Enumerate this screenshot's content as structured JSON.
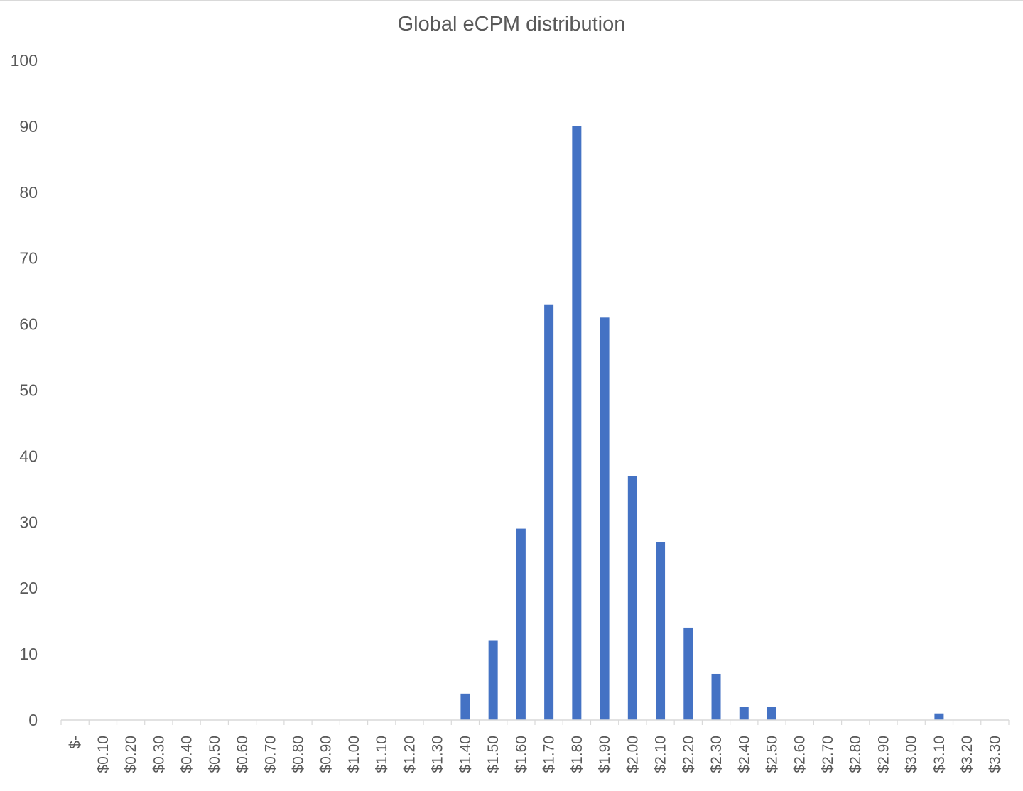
{
  "chart_data": {
    "type": "bar",
    "title": "Global eCPM distribution",
    "xlabel": "",
    "ylabel": "",
    "ylim": [
      0,
      100
    ],
    "yticks": [
      0,
      10,
      20,
      30,
      40,
      50,
      60,
      70,
      80,
      90,
      100
    ],
    "grid": false,
    "bar_color": "#4472c4",
    "categories": [
      "$-",
      "$0.10",
      "$0.20",
      "$0.30",
      "$0.40",
      "$0.50",
      "$0.60",
      "$0.70",
      "$0.80",
      "$0.90",
      "$1.00",
      "$1.10",
      "$1.20",
      "$1.30",
      "$1.40",
      "$1.50",
      "$1.60",
      "$1.70",
      "$1.80",
      "$1.90",
      "$2.00",
      "$2.10",
      "$2.20",
      "$2.30",
      "$2.40",
      "$2.50",
      "$2.60",
      "$2.70",
      "$2.80",
      "$2.90",
      "$3.00",
      "$3.10",
      "$3.20",
      "$3.30"
    ],
    "values": [
      0,
      0,
      0,
      0,
      0,
      0,
      0,
      0,
      0,
      0,
      0,
      0,
      0,
      0,
      4,
      12,
      29,
      63,
      90,
      61,
      37,
      27,
      14,
      7,
      2,
      2,
      0,
      0,
      0,
      0,
      0,
      1,
      0,
      0
    ]
  }
}
